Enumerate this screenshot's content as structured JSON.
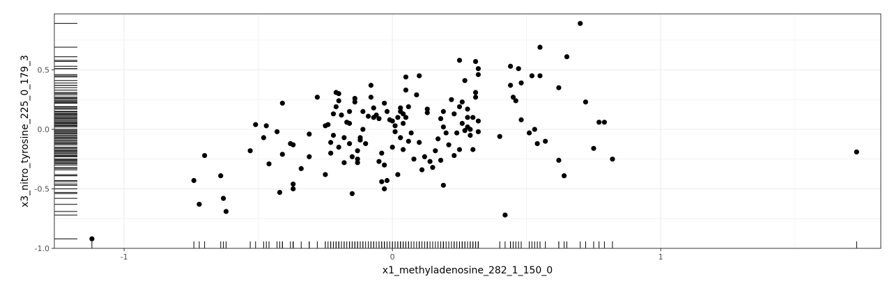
{
  "chart_data": {
    "type": "scatter",
    "xlabel": "x1_methyladenosine_282_1_150_0",
    "ylabel": "x3_nitro_tyrosine_225_0_179_3",
    "xlim": [
      -1.26,
      1.82
    ],
    "ylim": [
      -1.0,
      0.97
    ],
    "x_ticks": [
      -1,
      0,
      1
    ],
    "y_ticks": [
      -1.0,
      -0.5,
      0.0,
      0.5
    ],
    "x_tick_labels": [
      "-1",
      "0",
      "1"
    ],
    "y_tick_labels": [
      "-1.0",
      "-0.5",
      "0.0",
      "0.5"
    ],
    "grid": true,
    "rug": [
      "bottom",
      "left"
    ],
    "colors": {
      "point": "#000000",
      "grid": "#ebebeb",
      "panel_border": "#333333"
    },
    "points": [
      [
        -1.12,
        -0.92
      ],
      [
        -0.74,
        -0.43
      ],
      [
        -0.72,
        -0.63
      ],
      [
        -0.7,
        -0.22
      ],
      [
        -0.64,
        -0.39
      ],
      [
        -0.63,
        -0.58
      ],
      [
        -0.62,
        -0.69
      ],
      [
        -0.53,
        -0.18
      ],
      [
        -0.51,
        0.04
      ],
      [
        -0.48,
        -0.07
      ],
      [
        -0.47,
        0.03
      ],
      [
        -0.46,
        -0.29
      ],
      [
        -0.43,
        -0.02
      ],
      [
        -0.42,
        -0.53
      ],
      [
        -0.41,
        0.22
      ],
      [
        -0.41,
        -0.21
      ],
      [
        -0.38,
        -0.12
      ],
      [
        -0.37,
        -0.46
      ],
      [
        -0.37,
        -0.5
      ],
      [
        -0.37,
        -0.13
      ],
      [
        -0.34,
        -0.33
      ],
      [
        -0.31,
        -0.04
      ],
      [
        -0.31,
        -0.23
      ],
      [
        -0.28,
        0.27
      ],
      [
        -0.25,
        0.03
      ],
      [
        -0.25,
        -0.38
      ],
      [
        -0.24,
        0.04
      ],
      [
        -0.23,
        -0.11
      ],
      [
        -0.23,
        -0.2
      ],
      [
        -0.22,
        0.13
      ],
      [
        -0.22,
        -0.05
      ],
      [
        -0.21,
        0.31
      ],
      [
        -0.21,
        0.19
      ],
      [
        -0.2,
        0.24
      ],
      [
        -0.2,
        -0.15
      ],
      [
        -0.2,
        0.3
      ],
      [
        -0.19,
        0.12
      ],
      [
        -0.18,
        -0.28
      ],
      [
        -0.18,
        -0.07
      ],
      [
        -0.17,
        0.06
      ],
      [
        -0.16,
        0.15
      ],
      [
        -0.16,
        0.05
      ],
      [
        -0.16,
        -0.12
      ],
      [
        -0.15,
        -0.23
      ],
      [
        -0.15,
        -0.54
      ],
      [
        -0.14,
        0.26
      ],
      [
        -0.14,
        0.23
      ],
      [
        -0.13,
        -0.25
      ],
      [
        -0.13,
        -0.18
      ],
      [
        -0.13,
        -0.28
      ],
      [
        -0.12,
        -0.09
      ],
      [
        -0.12,
        -0.07
      ],
      [
        -0.11,
        0.0
      ],
      [
        -0.11,
        0.15
      ],
      [
        -0.1,
        -0.12
      ],
      [
        -0.09,
        0.11
      ],
      [
        -0.08,
        0.37
      ],
      [
        -0.08,
        0.27
      ],
      [
        -0.07,
        0.1
      ],
      [
        -0.07,
        0.18
      ],
      [
        -0.06,
        0.12
      ],
      [
        -0.05,
        -0.27
      ],
      [
        -0.05,
        0.09
      ],
      [
        -0.04,
        -0.2
      ],
      [
        -0.04,
        -0.44
      ],
      [
        -0.03,
        0.22
      ],
      [
        -0.03,
        -0.5
      ],
      [
        -0.03,
        -0.3
      ],
      [
        -0.02,
        0.15
      ],
      [
        -0.02,
        -0.43
      ],
      [
        -0.01,
        0.08
      ],
      [
        0.0,
        0.07
      ],
      [
        0.0,
        -0.15
      ],
      [
        0.01,
        -0.02
      ],
      [
        0.01,
        0.03
      ],
      [
        0.02,
        0.1
      ],
      [
        0.02,
        -0.38
      ],
      [
        0.03,
        0.15
      ],
      [
        0.03,
        0.18
      ],
      [
        0.03,
        -0.07
      ],
      [
        0.04,
        0.05
      ],
      [
        0.04,
        0.13
      ],
      [
        0.04,
        -0.17
      ],
      [
        0.05,
        0.44
      ],
      [
        0.05,
        0.33
      ],
      [
        0.05,
        0.1
      ],
      [
        0.06,
        0.19
      ],
      [
        0.06,
        -0.1
      ],
      [
        0.07,
        -0.03
      ],
      [
        0.08,
        -0.25
      ],
      [
        0.09,
        0.29
      ],
      [
        0.1,
        0.45
      ],
      [
        0.1,
        -0.11
      ],
      [
        0.11,
        -0.34
      ],
      [
        0.12,
        -0.23
      ],
      [
        0.13,
        0.14
      ],
      [
        0.13,
        0.17
      ],
      [
        0.14,
        -0.27
      ],
      [
        0.15,
        -0.32
      ],
      [
        0.16,
        -0.18
      ],
      [
        0.17,
        -0.08
      ],
      [
        0.18,
        0.09
      ],
      [
        0.18,
        -0.26
      ],
      [
        0.19,
        0.15
      ],
      [
        0.19,
        -0.47
      ],
      [
        0.19,
        0.02
      ],
      [
        0.2,
        -0.03
      ],
      [
        0.21,
        -0.13
      ],
      [
        0.22,
        0.25
      ],
      [
        0.23,
        0.13
      ],
      [
        0.23,
        -0.22
      ],
      [
        0.24,
        -0.03
      ],
      [
        0.25,
        0.58
      ],
      [
        0.25,
        -0.17
      ],
      [
        0.25,
        0.19
      ],
      [
        0.26,
        0.05
      ],
      [
        0.26,
        0.23
      ],
      [
        0.27,
        -0.01
      ],
      [
        0.27,
        0.41
      ],
      [
        0.28,
        0.1
      ],
      [
        0.28,
        0.17
      ],
      [
        0.28,
        0.02
      ],
      [
        0.29,
        0.0
      ],
      [
        0.29,
        -0.05
      ],
      [
        0.3,
        -0.17
      ],
      [
        0.3,
        0.1
      ],
      [
        0.31,
        0.57
      ],
      [
        0.31,
        0.31
      ],
      [
        0.31,
        0.27
      ],
      [
        0.32,
        0.46
      ],
      [
        0.32,
        0.51
      ],
      [
        0.32,
        -0.02
      ],
      [
        0.32,
        0.07
      ],
      [
        0.4,
        -0.06
      ],
      [
        0.42,
        -0.72
      ],
      [
        0.44,
        0.37
      ],
      [
        0.44,
        0.53
      ],
      [
        0.45,
        0.27
      ],
      [
        0.46,
        0.24
      ],
      [
        0.47,
        0.51
      ],
      [
        0.48,
        0.39
      ],
      [
        0.48,
        0.08
      ],
      [
        0.51,
        -0.03
      ],
      [
        0.52,
        0.45
      ],
      [
        0.53,
        0.0
      ],
      [
        0.55,
        0.45
      ],
      [
        0.55,
        0.69
      ],
      [
        0.57,
        -0.1
      ],
      [
        0.54,
        -0.12
      ],
      [
        0.62,
        0.35
      ],
      [
        0.62,
        -0.26
      ],
      [
        0.64,
        -0.39
      ],
      [
        0.65,
        0.61
      ],
      [
        0.7,
        0.89
      ],
      [
        0.72,
        0.23
      ],
      [
        0.75,
        -0.16
      ],
      [
        0.77,
        0.06
      ],
      [
        0.79,
        0.06
      ],
      [
        0.82,
        -0.25
      ],
      [
        1.73,
        -0.19
      ]
    ]
  }
}
